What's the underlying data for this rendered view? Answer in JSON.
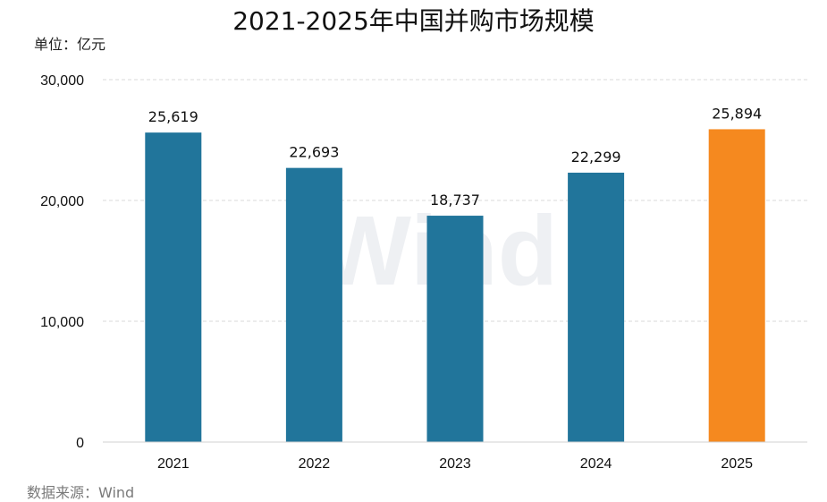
{
  "chart_data": {
    "type": "bar",
    "title": "2021-2025年中国并购市场规模",
    "unit_label": "单位：亿元",
    "source": "数据来源：Wind",
    "watermark": "Wind",
    "categories": [
      "2021",
      "2022",
      "2023",
      "2024",
      "2025"
    ],
    "values": [
      25619,
      22693,
      18737,
      22299,
      25894
    ],
    "data_labels": [
      "25,619",
      "22,693",
      "18,737",
      "22,299",
      "25,894"
    ],
    "colors": [
      "#21759b",
      "#21759b",
      "#21759b",
      "#21759b",
      "#f5891f"
    ],
    "ylim": [
      0,
      30000
    ],
    "yticks": [
      0,
      10000,
      20000,
      30000
    ],
    "ytick_labels": [
      "0",
      "10,000",
      "20,000",
      "30,000"
    ],
    "grid": true,
    "xlabel": "",
    "ylabel": ""
  }
}
